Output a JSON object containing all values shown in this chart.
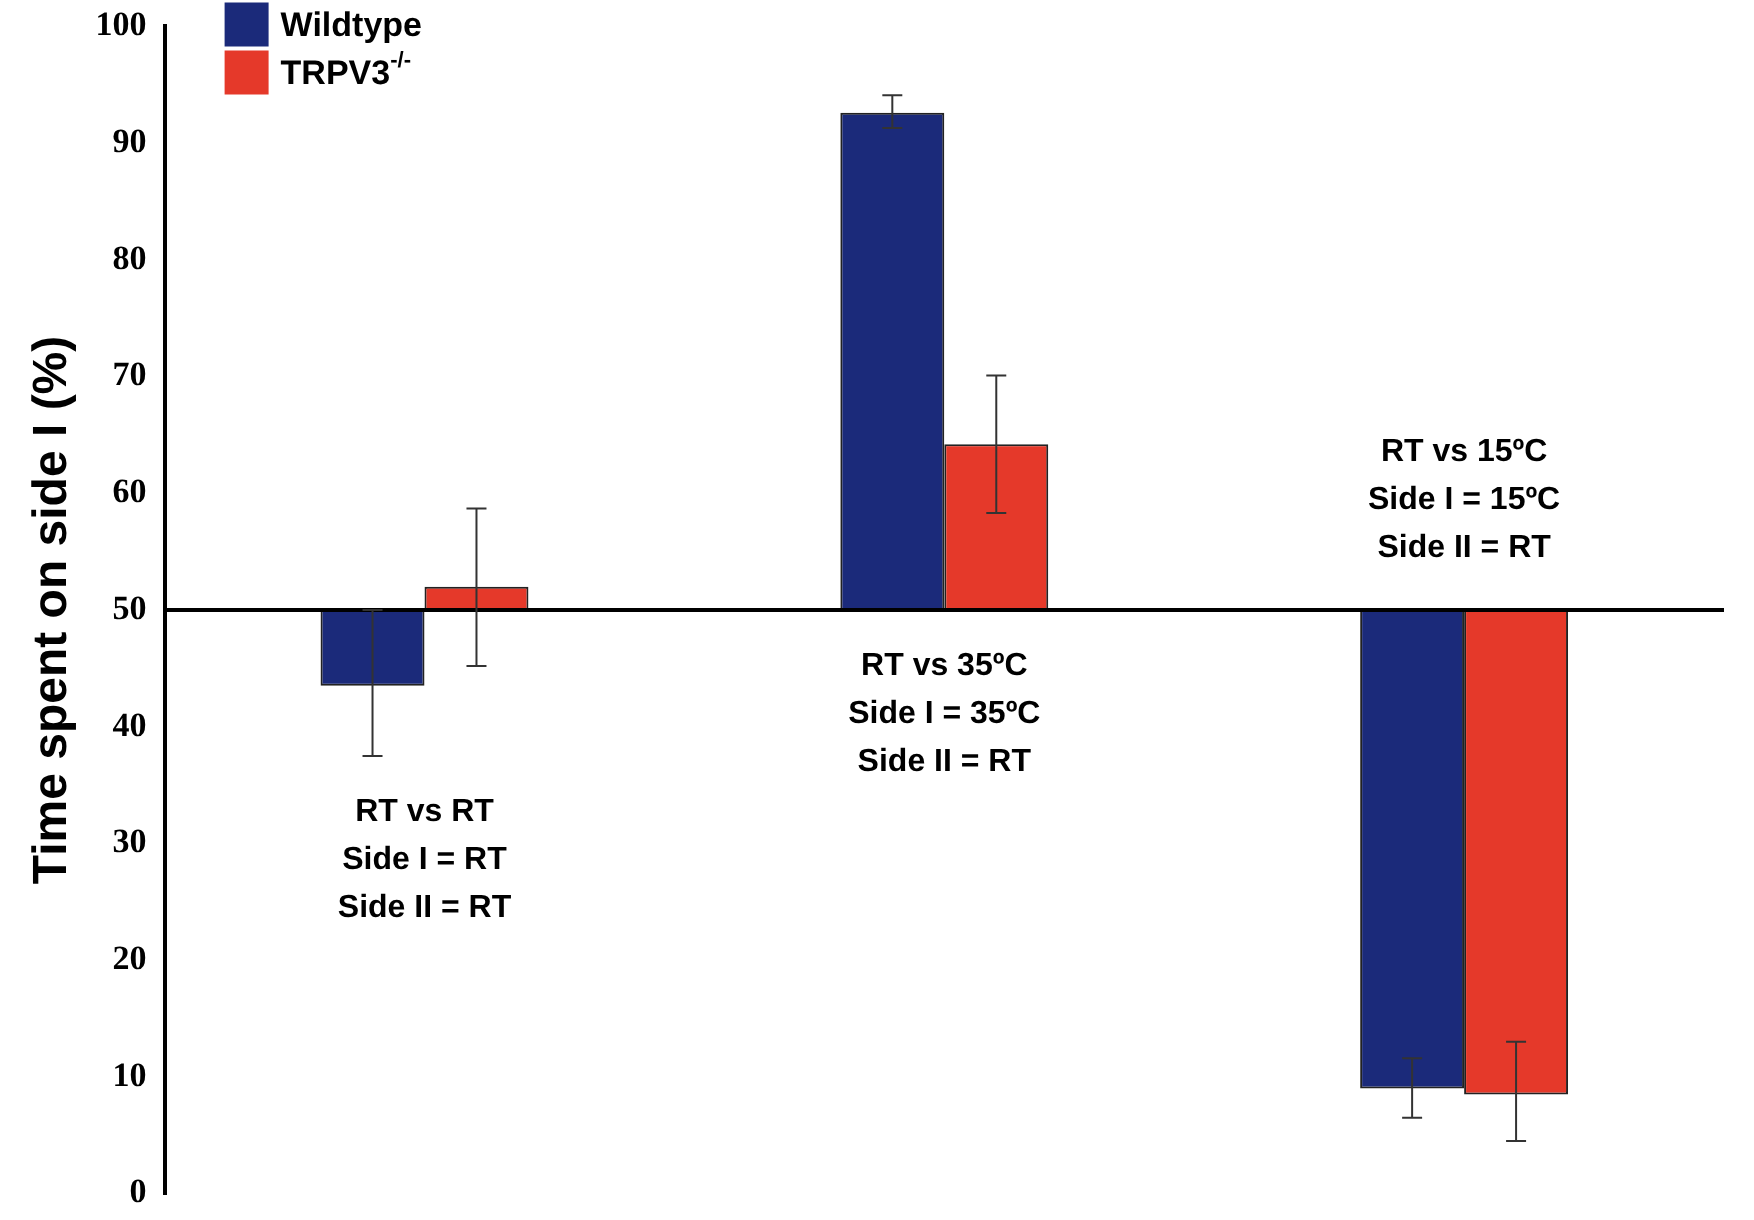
{
  "chart_data": {
    "type": "bar",
    "ylabel": "Time spent on side I (%)",
    "categories": [
      "RT vs RT\nSide I = RT\nSide II = RT",
      "RT vs 35ºC\nSide I = 35ºC\nSide II = RT",
      "RT vs 15ºC\nSide I = 15ºC\nSide II = RT"
    ],
    "series": [
      {
        "name": "Wildtype",
        "color": "#1b2a7a",
        "base": [
          50,
          50,
          50
        ],
        "values": [
          -6.5,
          42.6,
          -41
        ],
        "errors": [
          [
            37.5,
            50
          ],
          [
            91.3,
            94.1
          ],
          [
            6.5,
            11.6
          ]
        ]
      },
      {
        "name": "TRPV3$^{-/-}$",
        "color": "#e5392a",
        "base": [
          50,
          50,
          50
        ],
        "values": [
          2,
          14.2,
          -41.5
        ],
        "errors": [
          [
            45.2,
            58.7
          ],
          [
            58.3,
            70.1
          ],
          [
            4.5,
            13
          ]
        ]
      }
    ],
    "ylim": [
      0,
      100
    ],
    "yticks": [
      0,
      10,
      20,
      30,
      40,
      50,
      60,
      70,
      80,
      90,
      100
    ],
    "ref_lines": [
      {
        "axis": "y",
        "value": 50
      }
    ],
    "grid": false,
    "legend": "top left",
    "tick_labels": "y"
  }
}
